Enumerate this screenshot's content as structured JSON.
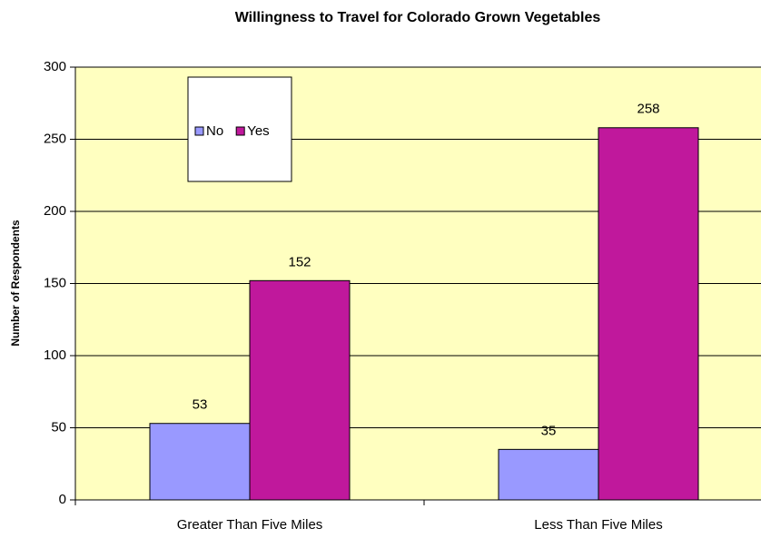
{
  "chart_data": {
    "type": "bar",
    "title": "Willingness to Travel for Colorado Grown Vegetables",
    "y_label": "Number of Respondents",
    "categories": [
      "Greater Than Five Miles",
      "Less Than Five Miles"
    ],
    "series": [
      {
        "name": "No",
        "color": "#9999ff",
        "values": [
          53,
          35
        ]
      },
      {
        "name": "Yes",
        "color": "#c0189c",
        "values": [
          152,
          258
        ]
      }
    ],
    "ylim": [
      0,
      300
    ],
    "yticks": [
      0,
      50,
      100,
      150,
      200,
      250,
      300
    ],
    "grid": true,
    "legend": "upper left",
    "background": "#ffffc0"
  }
}
